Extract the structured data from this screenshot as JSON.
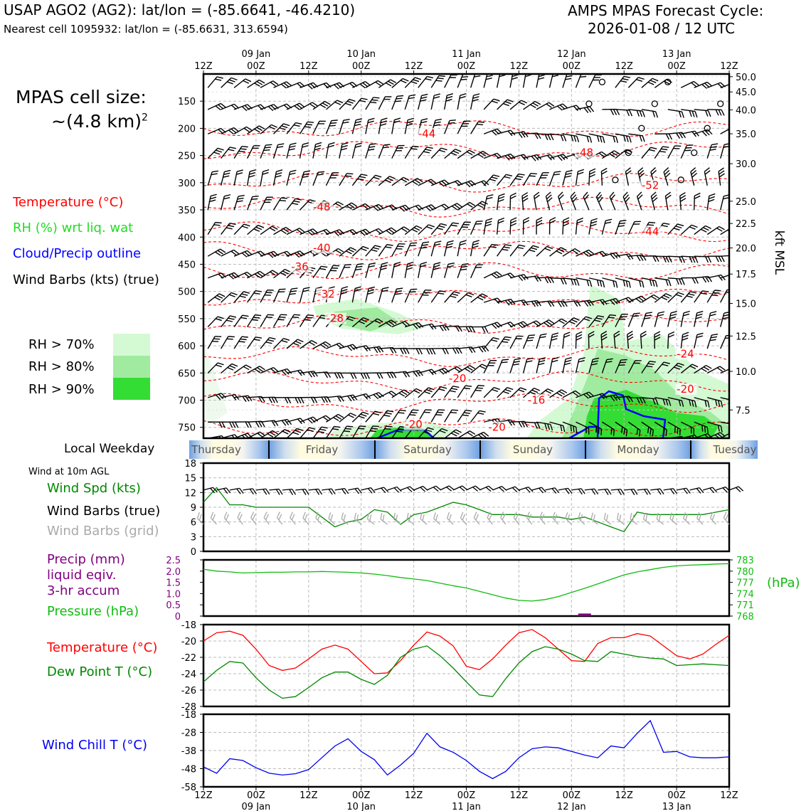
{
  "header": {
    "station": "USAP AGO2 (AG2): lat/lon = (-85.6641, -46.4210)",
    "nearest": "Nearest cell 1095932: lat/lon = (-85.6631, 313.6594)",
    "forecast_line1": "AMPS MPAS Forecast Cycle:",
    "forecast_line2": "2026-01-08 / 12 UTC"
  },
  "cell_size": {
    "line1": "MPAS cell size:",
    "line2": "~(4.8 km)",
    "exponent": "2"
  },
  "upper_legend": {
    "temperature": "Temperature (°C)",
    "rh": "RH (%) wrt liq. wat",
    "cloud": "Cloud/Precip outline",
    "wind": "Wind Barbs (kts) (true)"
  },
  "rh_legend": [
    {
      "label": "RH > 70%",
      "color": "#d4fad4"
    },
    {
      "label": "RH > 80%",
      "color": "#a0eba0"
    },
    {
      "label": "RH > 90%",
      "color": "#33dd33"
    }
  ],
  "colors": {
    "temperature": "#ff0000",
    "rh_text": "#22dd22",
    "cloud": "#0000ff",
    "green": "#008800",
    "pressure": "#11bb11",
    "precip": "#800080",
    "grid_barb": "#aaaaaa",
    "windchill": "#0000ee"
  },
  "weekday": {
    "label": "Local Weekday",
    "days": [
      "Thursday",
      "Friday",
      "Saturday",
      "Sunday",
      "Monday",
      "Tuesday"
    ]
  },
  "wind_panel": {
    "note": "Wind at 10m AGL",
    "speed_label": "Wind Spd (kts)",
    "barbs_true_label": "Wind Barbs (true)",
    "barbs_grid_label": "Wind Barbs (grid)"
  },
  "precip_panel": {
    "precip_label": "Precip (mm)",
    "precip_label2": "liquid eqiv.",
    "precip_label3": "3-hr accum",
    "pressure_label": "Pressure (hPa)",
    "pressure_unit": "(hPa)"
  },
  "temp_panel": {
    "temp_label": "Temperature (°C)",
    "dew_label": "Dew Point T (°C)"
  },
  "chill_panel": {
    "label": "Wind Chill T (°C)"
  },
  "chart_data": [
    {
      "type": "heatmap",
      "name": "vertical cross-section",
      "x_hours": [
        0,
        120
      ],
      "x_ticks_top": [
        "12Z",
        "00Z",
        "12Z",
        "00Z",
        "12Z",
        "00Z",
        "12Z",
        "00Z",
        "12Z",
        "00Z",
        "12Z"
      ],
      "x_dates": [
        "09 Jan",
        "10 Jan",
        "11 Jan",
        "12 Jan",
        "13 Jan"
      ],
      "ylabel_left": "Pressure (hPa)",
      "ylim_hpa": [
        100,
        770
      ],
      "y_ticks_left": [
        150,
        200,
        250,
        300,
        350,
        400,
        450,
        500,
        550,
        600,
        650,
        700,
        750
      ],
      "ylabel_right": "kft MSL",
      "y_ticks_right": [
        {
          "label": "50.0",
          "hpa": 105
        },
        {
          "label": "45.0",
          "hpa": 133
        },
        {
          "label": "40.0",
          "hpa": 166
        },
        {
          "label": "35.0",
          "hpa": 210
        },
        {
          "label": "30.0",
          "hpa": 265
        },
        {
          "label": "25.0",
          "hpa": 334
        },
        {
          "label": "22.5",
          "hpa": 375
        },
        {
          "label": "20.0",
          "hpa": 420
        },
        {
          "label": "17.5",
          "hpa": 468
        },
        {
          "label": "15.0",
          "hpa": 522
        },
        {
          "label": "12.5",
          "hpa": 582
        },
        {
          "label": "10.0",
          "hpa": 647
        },
        {
          "label": "7.5",
          "hpa": 718
        }
      ],
      "temperature_labels": [
        {
          "text": "-44",
          "hour": 51,
          "hpa": 215
        },
        {
          "text": "-48",
          "hour": 87,
          "hpa": 250
        },
        {
          "text": "-52",
          "hour": 102,
          "hpa": 310
        },
        {
          "text": "-48",
          "hour": 27,
          "hpa": 350
        },
        {
          "text": "-44",
          "hour": 102,
          "hpa": 395
        },
        {
          "text": "-40",
          "hour": 27,
          "hpa": 425
        },
        {
          "text": "-36",
          "hour": 22,
          "hpa": 460
        },
        {
          "text": "-32",
          "hour": 28,
          "hpa": 510
        },
        {
          "text": "-28",
          "hour": 30,
          "hpa": 555
        },
        {
          "text": "-24",
          "hour": 110,
          "hpa": 620
        },
        {
          "text": "-20",
          "hour": 58,
          "hpa": 665
        },
        {
          "text": "-20",
          "hour": 110,
          "hpa": 685
        },
        {
          "text": "-16",
          "hour": 76,
          "hpa": 705
        },
        {
          "text": "-20",
          "hour": 48,
          "hpa": 750
        },
        {
          "text": "-20",
          "hour": 67,
          "hpa": 755
        }
      ]
    },
    {
      "type": "line",
      "name": "wind speed 10m",
      "x_hours": [
        0,
        3,
        6,
        9,
        12,
        15,
        18,
        21,
        24,
        27,
        30,
        33,
        36,
        39,
        42,
        45,
        48,
        51,
        54,
        57,
        60,
        63,
        66,
        69,
        72,
        75,
        78,
        81,
        84,
        87,
        90,
        93,
        96,
        99,
        102,
        105,
        108,
        111,
        114,
        117,
        120
      ],
      "series": [
        {
          "name": "Wind Spd (kts)",
          "values": [
            10,
            13,
            9.5,
            9.5,
            9,
            9,
            9,
            9,
            9,
            7,
            5,
            6,
            6.5,
            8.5,
            8,
            5.5,
            7.5,
            8,
            9,
            10,
            9.5,
            8.5,
            7.5,
            7.5,
            7.5,
            7,
            7,
            7,
            6.5,
            7,
            6,
            5,
            4,
            8,
            7.5,
            7.5,
            7.5,
            7.5,
            7.5,
            8,
            8.5
          ]
        }
      ],
      "ylim": [
        0,
        18
      ],
      "y_ticks": [
        0,
        3,
        6,
        9,
        12,
        15,
        18
      ]
    },
    {
      "type": "line",
      "name": "pressure and precip",
      "series": [
        {
          "name": "Pressure (hPa)",
          "values": [
            780.5,
            780,
            779.8,
            779.5,
            779.6,
            779.7,
            779.7,
            779.8,
            779.8,
            779.9,
            779.8,
            779.7,
            779.5,
            779.2,
            778.8,
            778.3,
            777.9,
            777.5,
            776.8,
            776.1,
            775.5,
            774.6,
            773.7,
            772.8,
            772.2,
            772,
            772.4,
            773.2,
            774.3,
            775.4,
            776.6,
            777.8,
            779,
            779.8,
            780.4,
            781,
            781.4,
            781.6,
            781.7,
            781.9,
            782
          ]
        },
        {
          "name": "Precip (mm)",
          "values": [
            0,
            0,
            0,
            0,
            0,
            0,
            0,
            0,
            0,
            0,
            0,
            0,
            0,
            0,
            0,
            0,
            0,
            0,
            0,
            0,
            0,
            0,
            0,
            0,
            0,
            0,
            0,
            0,
            0,
            0.05,
            0,
            0,
            0,
            0,
            0,
            0,
            0,
            0,
            0,
            0,
            0
          ]
        }
      ],
      "y_left_ticks": [
        "0",
        "0.5",
        "1.0",
        "1.5",
        "2.0",
        "2.5"
      ],
      "y_right_ticks": [
        "768",
        "771",
        "774",
        "777",
        "780",
        "783"
      ],
      "ylim_left": [
        0,
        2.5
      ],
      "ylim_right": [
        768,
        783
      ]
    },
    {
      "type": "line",
      "name": "temperature and dew point",
      "series": [
        {
          "name": "Temperature (°C)",
          "values": [
            -20,
            -19,
            -18.8,
            -19.3,
            -21,
            -23,
            -23.6,
            -23.3,
            -22.2,
            -21,
            -20.5,
            -21,
            -22.5,
            -24,
            -23.9,
            -22.4,
            -20.5,
            -18.9,
            -19.4,
            -20.6,
            -23.1,
            -23.5,
            -22.2,
            -20.5,
            -19,
            -18.6,
            -19.6,
            -21,
            -22.4,
            -22.5,
            -20.3,
            -19.6,
            -19.6,
            -19.1,
            -19.4,
            -20.6,
            -21.8,
            -22.2,
            -21.6,
            -20.4,
            -19.3
          ]
        },
        {
          "name": "Dew Point T (°C)",
          "values": [
            -25,
            -23.6,
            -22.5,
            -22.7,
            -24.5,
            -26,
            -27,
            -26.8,
            -25.7,
            -24.5,
            -23.8,
            -23.8,
            -24.7,
            -25.3,
            -24.2,
            -22,
            -21,
            -20.6,
            -21.8,
            -23.3,
            -25,
            -26.6,
            -26.8,
            -24.6,
            -22.7,
            -21.3,
            -20.7,
            -21,
            -21.6,
            -22.4,
            -22.5,
            -21.3,
            -21.6,
            -21.9,
            -22.1,
            -22.2,
            -23,
            -22.9,
            -22.8,
            -22.9,
            -23
          ]
        }
      ],
      "ylim": [
        -28,
        -18
      ],
      "y_ticks": [
        -28,
        -26,
        -24,
        -22,
        -20,
        -18
      ]
    },
    {
      "type": "line",
      "name": "wind chill",
      "series": [
        {
          "name": "Wind Chill T (°C)",
          "values": [
            -47,
            -50.5,
            -42.5,
            -43.5,
            -47.5,
            -50.5,
            -51.5,
            -50.8,
            -48.5,
            -42,
            -35.5,
            -31.5,
            -38.5,
            -43,
            -51.5,
            -46,
            -39.5,
            -28.5,
            -36,
            -39,
            -43.5,
            -49.5,
            -53.5,
            -49.5,
            -42,
            -37,
            -36,
            -36.5,
            -38.5,
            -40.5,
            -42,
            -35.5,
            -36.5,
            -28.5,
            -21.5,
            -39,
            -38.5,
            -41.5,
            -42,
            -42,
            -41.5
          ]
        }
      ],
      "ylim": [
        -58,
        -18
      ],
      "y_ticks": [
        -58,
        -48,
        -38,
        -28,
        -18
      ]
    }
  ]
}
